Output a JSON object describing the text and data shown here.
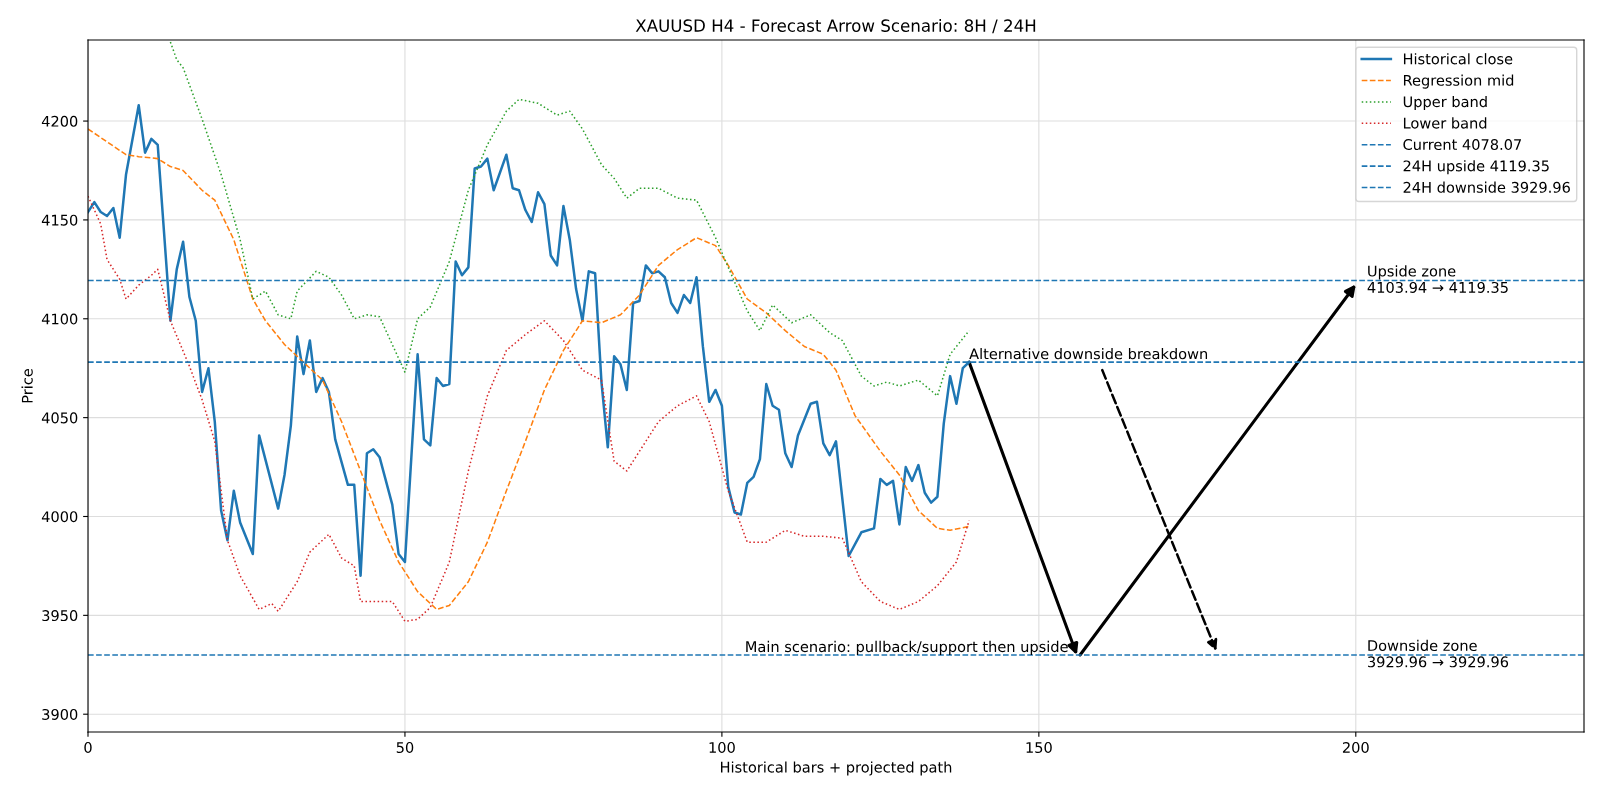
{
  "chart_data": {
    "type": "line",
    "title": "XAUUSD H4 - Forecast Arrow Scenario: 8H / 24H",
    "xlabel": "Historical bars + projected path",
    "ylabel": "Price",
    "xlim": [
      0,
      236
    ],
    "xticks": [
      0,
      50,
      100,
      150,
      200
    ],
    "ylim": [
      3891,
      4241
    ],
    "yticks": [
      3900,
      3950,
      4000,
      4050,
      4100,
      4150,
      4200
    ],
    "grid": true,
    "legend": "top right",
    "series": [
      {
        "name": "Historical close",
        "color": "#1f77b4",
        "line_style": "solid",
        "x": [
          0,
          1,
          2,
          3,
          4,
          5,
          6,
          8,
          9,
          10,
          11,
          13,
          14,
          15,
          16,
          17,
          18,
          19,
          20,
          21,
          22,
          23,
          24,
          26,
          27,
          30,
          31,
          32,
          33,
          34,
          35,
          36,
          37,
          38,
          39,
          41,
          42,
          43,
          44,
          45,
          46,
          48,
          49,
          50,
          52,
          53,
          54,
          55,
          56,
          57,
          58,
          59,
          60,
          61,
          62,
          63,
          64,
          66,
          67,
          68,
          69,
          70,
          71,
          72,
          73,
          74,
          75,
          76,
          77,
          78,
          79,
          80,
          81,
          82,
          83,
          84,
          85,
          86,
          87,
          88,
          89,
          90,
          91,
          92,
          93,
          94,
          95,
          96,
          97,
          98,
          99,
          100,
          101,
          102,
          103,
          104,
          105,
          106,
          107,
          108,
          109,
          110,
          111,
          112,
          114,
          115,
          116,
          117,
          118,
          120,
          122,
          124,
          125,
          126,
          127,
          128,
          129,
          130,
          131,
          132,
          133,
          134,
          135,
          136,
          137,
          138,
          139
        ],
        "values": [
          4154,
          4159,
          4154,
          4152,
          4156,
          4141,
          4173,
          4208,
          4184,
          4191,
          4188,
          4099,
          4125,
          4139,
          4111,
          4099,
          4063,
          4075,
          4048,
          4003,
          3988,
          4013,
          3997,
          3981,
          4041,
          4004,
          4021,
          4046,
          4091,
          4072,
          4089,
          4063,
          4070,
          4063,
          4039,
          4016,
          4016,
          3970,
          4032,
          4034,
          4030,
          4006,
          3981,
          3977,
          4082,
          4039,
          4036,
          4070,
          4066,
          4067,
          4129,
          4122,
          4126,
          4176,
          4177,
          4181,
          4165,
          4183,
          4166,
          4165,
          4155,
          4149,
          4164,
          4158,
          4132,
          4127,
          4157,
          4140,
          4115,
          4099,
          4124,
          4123,
          4068,
          4035,
          4081,
          4077,
          4064,
          4108,
          4109,
          4127,
          4123,
          4124,
          4121,
          4108,
          4103,
          4112,
          4108,
          4121,
          4086,
          4058,
          4064,
          4056,
          4015,
          4002,
          4001,
          4017,
          4020,
          4029,
          4067,
          4056,
          4054,
          4032,
          4025,
          4041,
          4057,
          4058,
          4037,
          4031,
          4038,
          3980,
          3992,
          3994,
          4019,
          4016,
          4018,
          3996,
          4025,
          4018,
          4026,
          4012,
          4007,
          4010,
          4047,
          4071,
          4057,
          4075,
          4078.07
        ]
      },
      {
        "name": "Regression mid",
        "color": "#ff7f0e",
        "line_style": "dashed",
        "x": [
          0,
          6,
          8,
          11,
          13,
          15,
          18,
          20,
          23,
          26,
          28,
          31,
          34,
          37,
          40,
          43,
          46,
          49,
          52,
          55,
          57,
          60,
          63,
          66,
          69,
          72,
          75,
          78,
          81,
          84,
          87,
          90,
          93,
          96,
          99,
          101,
          104,
          107,
          110,
          113,
          116,
          118,
          121,
          125,
          128,
          131,
          134,
          136,
          139
        ],
        "values": [
          4196,
          4183,
          4182,
          4181,
          4177,
          4175,
          4165,
          4160,
          4140,
          4110,
          4099,
          4087,
          4078,
          4069,
          4048,
          4023,
          3998,
          3977,
          3962,
          3953,
          3955,
          3967,
          3987,
          4013,
          4038,
          4064,
          4084,
          4099,
          4098,
          4102,
          4112,
          4127,
          4135,
          4141,
          4137,
          4127,
          4110,
          4103,
          4094,
          4086,
          4082,
          4074,
          4051,
          4033,
          4021,
          4003,
          3994,
          3993,
          3995
        ]
      },
      {
        "name": "Upper band",
        "color": "#2ca02c",
        "line_style": "dotted",
        "x": [
          13,
          14,
          15,
          18,
          21,
          24,
          26,
          28,
          30,
          32,
          33,
          36,
          38,
          40,
          42,
          44,
          46,
          50,
          52,
          54,
          57,
          60,
          63,
          66,
          68,
          71,
          74,
          76,
          78,
          81,
          83,
          85,
          87,
          90,
          93,
          96,
          99,
          101,
          104,
          106,
          108,
          111,
          114,
          117,
          119,
          122,
          124,
          126,
          128,
          131,
          134,
          136,
          139
        ],
        "values": [
          4240,
          4231,
          4227,
          4201,
          4173,
          4140,
          4110,
          4114,
          4102,
          4100,
          4114,
          4124,
          4121,
          4112,
          4100,
          4102,
          4101,
          4073,
          4100,
          4106,
          4129,
          4165,
          4188,
          4205,
          4211,
          4209,
          4203,
          4205,
          4196,
          4178,
          4171,
          4161,
          4166,
          4166,
          4161,
          4160,
          4141,
          4126,
          4104,
          4094,
          4107,
          4098,
          4102,
          4093,
          4089,
          4071,
          4066,
          4068,
          4066,
          4069,
          4061,
          4082,
          4094
        ]
      },
      {
        "name": "Lower band",
        "color": "#d62728",
        "line_style": "dotted",
        "x": [
          0,
          2,
          3,
          5,
          6,
          8,
          10,
          11,
          13,
          16,
          18,
          20,
          22,
          24,
          27,
          29,
          30,
          33,
          35,
          38,
          40,
          42,
          43,
          45,
          46,
          48,
          50,
          52,
          54,
          57,
          60,
          63,
          66,
          69,
          72,
          75,
          78,
          81,
          83,
          85,
          90,
          93,
          96,
          98,
          101,
          104,
          107,
          110,
          113,
          116,
          119,
          122,
          125,
          128,
          131,
          134,
          137,
          139
        ],
        "values": [
          4162,
          4148,
          4130,
          4120,
          4110,
          4117,
          4122,
          4125,
          4099,
          4076,
          4059,
          4038,
          3988,
          3970,
          3953,
          3956,
          3952,
          3967,
          3982,
          3991,
          3979,
          3975,
          3957,
          3957,
          3957,
          3957,
          3947,
          3948,
          3954,
          3977,
          4023,
          4061,
          4084,
          4092,
          4099,
          4089,
          4074,
          4069,
          4028,
          4023,
          4048,
          4056,
          4061,
          4048,
          4013,
          3987,
          3987,
          3993,
          3990,
          3990,
          3989,
          3967,
          3957,
          3953,
          3957,
          3965,
          3977,
          3998
        ]
      }
    ],
    "ref_lines": [
      {
        "axis": "y",
        "value": 4078.07,
        "label": "Current 4078.07",
        "color": "#1f77b4",
        "line_style": "dashed"
      },
      {
        "axis": "y",
        "value": 4119.35,
        "label": "24H upside 4119.35",
        "color": "#1f77b4",
        "line_style": "dashed"
      },
      {
        "axis": "y",
        "value": 3929.96,
        "label": "24H downside 3929.96",
        "color": "#1f77b4",
        "line_style": "dashed"
      }
    ],
    "annotations": [
      {
        "text": "Alternative downside breakdown",
        "x": 139,
        "y": 4078.07
      },
      {
        "text": "Main scenario: pullback/support then upside",
        "x": 156,
        "y": 3929.96
      },
      {
        "text": "Upside zone\n4103.94 → 4119.35",
        "x": 200,
        "y": 4119.35
      },
      {
        "text": "Downside zone\n3929.96 → 3929.96",
        "x": 200,
        "y": 3929.96
      }
    ]
  }
}
